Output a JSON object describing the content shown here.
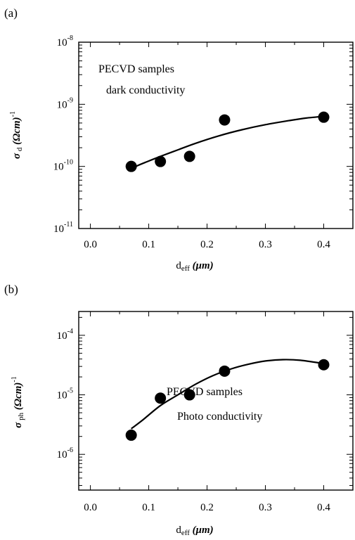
{
  "chart_data": [
    {
      "type": "scatter",
      "panel_label": "(a)",
      "annotation": [
        "PECVD samples",
        "dark conductivity"
      ],
      "xlabel": "d_eff (μm)",
      "xlabel_main": "d",
      "xlabel_sub": "eff",
      "xlabel_unit": "(μm)",
      "ylabel": "σ_d (Ωcm)^-1",
      "ylabel_symbol": "σ",
      "ylabel_sub": "d",
      "ylabel_unit": "(Ωcm)",
      "ylabel_exp": "-1",
      "xlim": [
        -0.02,
        0.45
      ],
      "ylim_log10": [
        -11,
        -8
      ],
      "yscale": "log",
      "x_ticks": [
        0.0,
        0.1,
        0.2,
        0.3,
        0.4
      ],
      "x_tick_labels": [
        "0.0",
        "0.1",
        "0.2",
        "0.3",
        "0.4"
      ],
      "y_tick_exponents": [
        -11,
        -10,
        -9,
        -8
      ],
      "y_tick_base": "10",
      "y_tick_exp_labels": [
        "-11",
        "-10",
        "-9",
        "-8"
      ],
      "points": [
        {
          "x": 0.07,
          "y": 1e-10
        },
        {
          "x": 0.12,
          "y": 1.2e-10
        },
        {
          "x": 0.17,
          "y": 1.45e-10
        },
        {
          "x": 0.23,
          "y": 5.6e-10
        },
        {
          "x": 0.4,
          "y": 6.2e-10
        }
      ],
      "fit_curve": [
        {
          "x": 0.065,
          "y": 8.5e-11
        },
        {
          "x": 0.08,
          "y": 1.02e-10
        },
        {
          "x": 0.1,
          "y": 1.22e-10
        },
        {
          "x": 0.12,
          "y": 1.45e-10
        },
        {
          "x": 0.15,
          "y": 1.85e-10
        },
        {
          "x": 0.18,
          "y": 2.35e-10
        },
        {
          "x": 0.22,
          "y": 3.1e-10
        },
        {
          "x": 0.26,
          "y": 3.9e-10
        },
        {
          "x": 0.3,
          "y": 4.7e-10
        },
        {
          "x": 0.34,
          "y": 5.45e-10
        },
        {
          "x": 0.37,
          "y": 6e-10
        },
        {
          "x": 0.4,
          "y": 6.4e-10
        }
      ]
    },
    {
      "type": "scatter",
      "panel_label": "(b)",
      "annotation": [
        "PECVD samples",
        "Photo  conductivity"
      ],
      "xlabel": "d_eff(μm)",
      "xlabel_main": "d",
      "xlabel_sub": "eff",
      "xlabel_unit": "(μm)",
      "ylabel": "σ_ph (Ωcm)^-1",
      "ylabel_symbol": "σ",
      "ylabel_sub": "ph",
      "ylabel_unit": "(Ωcm)",
      "ylabel_exp": "-1",
      "xlim": [
        -0.02,
        0.45
      ],
      "ylim_log10": [
        -6.6,
        -3.6
      ],
      "yscale": "log",
      "x_ticks": [
        0.0,
        0.1,
        0.2,
        0.3,
        0.4
      ],
      "x_tick_labels": [
        "0.0",
        "0.1",
        "0.2",
        "0.3",
        "0.4"
      ],
      "y_tick_exponents": [
        -6,
        -5,
        -4
      ],
      "y_tick_base": "10",
      "y_tick_exp_labels": [
        "-6",
        "-5",
        "-4"
      ],
      "points": [
        {
          "x": 0.07,
          "y": 2.1e-06
        },
        {
          "x": 0.12,
          "y": 8.8e-06
        },
        {
          "x": 0.17,
          "y": 1e-05
        },
        {
          "x": 0.23,
          "y": 2.5e-05
        },
        {
          "x": 0.4,
          "y": 3.2e-05
        }
      ],
      "fit_curve": [
        {
          "x": 0.07,
          "y": 2.7e-06
        },
        {
          "x": 0.09,
          "y": 3.8e-06
        },
        {
          "x": 0.12,
          "y": 6.6e-06
        },
        {
          "x": 0.15,
          "y": 1e-05
        },
        {
          "x": 0.18,
          "y": 1.5e-05
        },
        {
          "x": 0.21,
          "y": 2.1e-05
        },
        {
          "x": 0.24,
          "y": 2.7e-05
        },
        {
          "x": 0.27,
          "y": 3.25e-05
        },
        {
          "x": 0.3,
          "y": 3.7e-05
        },
        {
          "x": 0.33,
          "y": 3.9e-05
        },
        {
          "x": 0.36,
          "y": 3.8e-05
        },
        {
          "x": 0.4,
          "y": 3.35e-05
        }
      ]
    }
  ]
}
